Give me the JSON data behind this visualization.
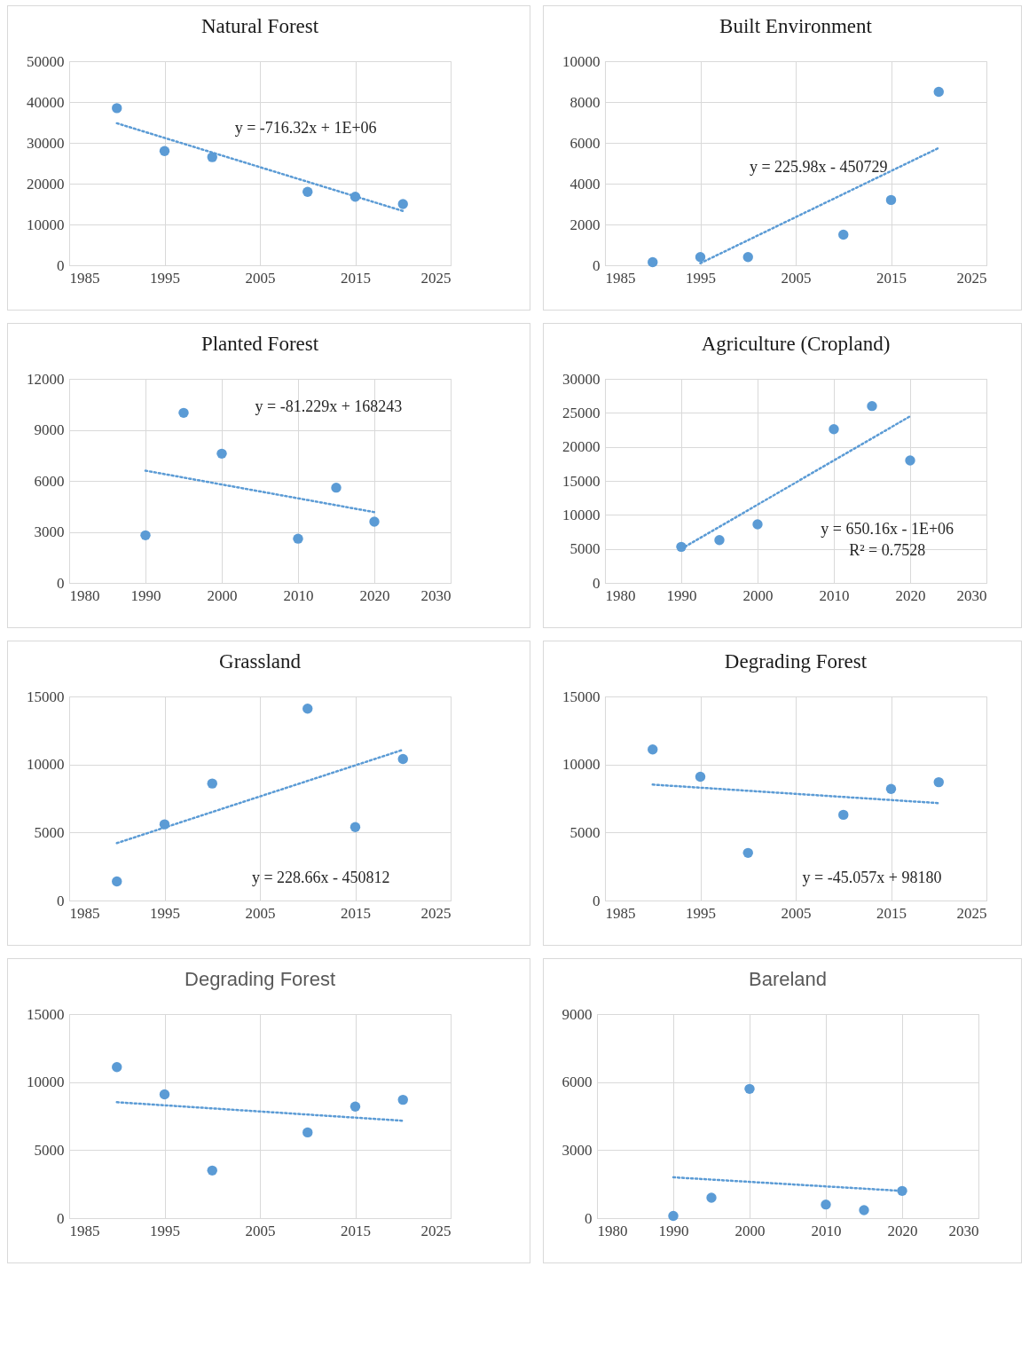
{
  "chart_data": [
    {
      "type": "scatter",
      "title": "Natural Forest",
      "x": [
        1990,
        1995,
        2000,
        2010,
        2015,
        2020
      ],
      "grid": true,
      "series": [
        {
          "type": "scatter",
          "marker": "circle",
          "color": "#5b9bd5",
          "values": [
            38500,
            28000,
            26500,
            18000,
            16800,
            15000
          ]
        },
        {
          "type": "line",
          "marker": "none",
          "color": "#5b9bd5",
          "line_style": "dotted",
          "x": [
            1990,
            2020
          ],
          "values": [
            34800,
            13300
          ]
        }
      ],
      "xlim": [
        1985,
        2025
      ],
      "xticks": [
        1985,
        1995,
        2005,
        2015,
        2025
      ],
      "ylim": [
        0,
        50000
      ],
      "yticks": [
        0,
        10000,
        20000,
        30000,
        40000,
        50000
      ],
      "annotations": [
        "y = -716.32x + 1E+06"
      ]
    },
    {
      "type": "scatter",
      "title": "Built Environment",
      "x": [
        1990,
        1995,
        2000,
        2010,
        2015,
        2020
      ],
      "grid": true,
      "series": [
        {
          "type": "scatter",
          "marker": "circle",
          "color": "#5b9bd5",
          "values": [
            150,
            400,
            400,
            1500,
            3200,
            8500
          ]
        },
        {
          "type": "line",
          "marker": "none",
          "color": "#5b9bd5",
          "line_style": "dotted",
          "x": [
            1995,
            2020
          ],
          "values": [
            100,
            5750
          ]
        }
      ],
      "xlim": [
        1985,
        2025
      ],
      "xticks": [
        1985,
        1995,
        2005,
        2015,
        2025
      ],
      "ylim": [
        0,
        10000
      ],
      "yticks": [
        0,
        2000,
        4000,
        6000,
        8000,
        10000
      ],
      "annotations": [
        "y = 225.98x - 450729"
      ]
    },
    {
      "type": "scatter",
      "title": "Planted Forest",
      "x": [
        1990,
        1995,
        2000,
        2010,
        2015,
        2020
      ],
      "grid": true,
      "series": [
        {
          "type": "scatter",
          "marker": "circle",
          "color": "#5b9bd5",
          "values": [
            2800,
            10000,
            7600,
            2600,
            5600,
            3600
          ]
        },
        {
          "type": "line",
          "marker": "none",
          "color": "#5b9bd5",
          "line_style": "dotted",
          "x": [
            1990,
            2020
          ],
          "values": [
            6600,
            4160
          ]
        }
      ],
      "xlim": [
        1980,
        2030
      ],
      "xticks": [
        1980,
        1990,
        2000,
        2010,
        2020,
        2030
      ],
      "ylim": [
        0,
        12000
      ],
      "yticks": [
        0,
        3000,
        6000,
        9000,
        12000
      ],
      "annotations": [
        "y = -81.229x + 168243"
      ]
    },
    {
      "type": "scatter",
      "title": "Agriculture (Cropland)",
      "x": [
        1990,
        1995,
        2000,
        2010,
        2015,
        2020
      ],
      "grid": true,
      "series": [
        {
          "type": "scatter",
          "marker": "circle",
          "color": "#5b9bd5",
          "values": [
            5300,
            6300,
            8600,
            22600,
            26000,
            18000
          ]
        },
        {
          "type": "line",
          "marker": "none",
          "color": "#5b9bd5",
          "line_style": "dotted",
          "x": [
            1990,
            2020
          ],
          "values": [
            5000,
            24500
          ]
        }
      ],
      "xlim": [
        1980,
        2030
      ],
      "xticks": [
        1980,
        1990,
        2000,
        2010,
        2020,
        2030
      ],
      "ylim": [
        0,
        30000
      ],
      "yticks": [
        0,
        5000,
        10000,
        15000,
        20000,
        25000,
        30000
      ],
      "annotations": [
        "y = 650.16x - 1E+06",
        "R² = 0.7528"
      ]
    },
    {
      "type": "scatter",
      "title": "Grassland",
      "x": [
        1990,
        1995,
        2000,
        2010,
        2015,
        2020
      ],
      "grid": true,
      "series": [
        {
          "type": "scatter",
          "marker": "circle",
          "color": "#5b9bd5",
          "values": [
            1400,
            5600,
            8600,
            14100,
            5400,
            10400
          ]
        },
        {
          "type": "line",
          "marker": "none",
          "color": "#5b9bd5",
          "line_style": "dotted",
          "x": [
            1990,
            2020
          ],
          "values": [
            4220,
            11080
          ]
        }
      ],
      "xlim": [
        1985,
        2025
      ],
      "xticks": [
        1985,
        1995,
        2005,
        2015,
        2025
      ],
      "ylim": [
        0,
        15000
      ],
      "yticks": [
        0,
        5000,
        10000,
        15000
      ],
      "annotations": [
        "y = 228.66x - 450812"
      ]
    },
    {
      "type": "scatter",
      "title": "Degrading Forest",
      "x": [
        1990,
        1995,
        2000,
        2010,
        2015,
        2020
      ],
      "grid": true,
      "series": [
        {
          "type": "scatter",
          "marker": "circle",
          "color": "#5b9bd5",
          "values": [
            11100,
            9100,
            3500,
            6300,
            8200,
            8700
          ]
        },
        {
          "type": "line",
          "marker": "none",
          "color": "#5b9bd5",
          "line_style": "dotted",
          "x": [
            1990,
            2020
          ],
          "values": [
            8520,
            7160
          ]
        }
      ],
      "xlim": [
        1985,
        2025
      ],
      "xticks": [
        1985,
        1995,
        2005,
        2015,
        2025
      ],
      "ylim": [
        0,
        15000
      ],
      "yticks": [
        0,
        5000,
        10000,
        15000
      ],
      "annotations": [
        "y = -45.057x + 98180"
      ]
    },
    {
      "type": "scatter",
      "title": "Degrading Forest",
      "x": [
        1990,
        1995,
        2000,
        2010,
        2015,
        2020
      ],
      "grid": true,
      "series": [
        {
          "type": "scatter",
          "marker": "circle",
          "color": "#5b9bd5",
          "values": [
            11100,
            9100,
            3500,
            6300,
            8200,
            8700
          ]
        },
        {
          "type": "line",
          "marker": "none",
          "color": "#5b9bd5",
          "line_style": "dotted",
          "x": [
            1990,
            2020
          ],
          "values": [
            8520,
            7160
          ]
        }
      ],
      "xlim": [
        1985,
        2025
      ],
      "xticks": [
        1985,
        1995,
        2005,
        2015,
        2025
      ],
      "ylim": [
        0,
        15000
      ],
      "yticks": [
        0,
        5000,
        10000,
        15000
      ]
    },
    {
      "type": "scatter",
      "title": "Bareland",
      "x": [
        1990,
        1995,
        2000,
        2010,
        2015,
        2020
      ],
      "grid": true,
      "series": [
        {
          "type": "scatter",
          "marker": "circle",
          "color": "#5b9bd5",
          "values": [
            100,
            900,
            5700,
            600,
            350,
            1200
          ]
        },
        {
          "type": "line",
          "marker": "none",
          "color": "#5b9bd5",
          "line_style": "dotted",
          "x": [
            1990,
            2020
          ],
          "values": [
            1800,
            1200
          ]
        }
      ],
      "xlim": [
        1980,
        2030
      ],
      "xticks": [
        1980,
        1990,
        2000,
        2010,
        2020,
        2030
      ],
      "ylim": [
        0,
        9000
      ],
      "yticks": [
        0,
        3000,
        6000,
        9000
      ]
    }
  ]
}
